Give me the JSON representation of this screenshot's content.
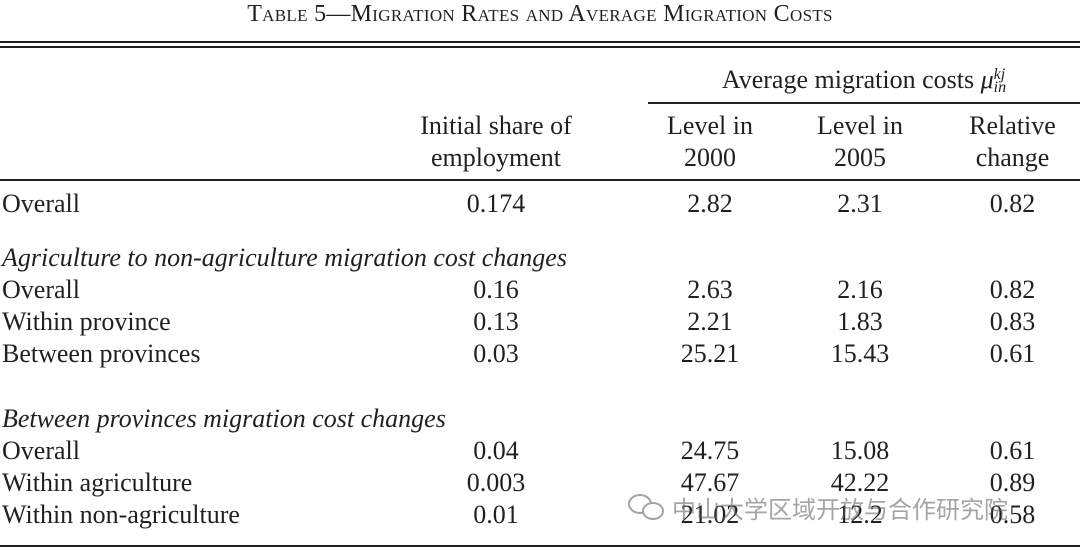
{
  "table": {
    "title": "Table 5—Migration Rates and Average Migration Costs",
    "span_header": {
      "text": "Average migration costs ",
      "symbol": "μ",
      "superscript": "kj",
      "subscript": "in"
    },
    "columns": {
      "col1_line1": "Initial share of",
      "col1_line2": "employment",
      "col2_line1": "Level in",
      "col2_line2": "2000",
      "col3_line1": "Level in",
      "col3_line2": "2005",
      "col4_line1": "Relative",
      "col4_line2": "change"
    },
    "overall_row": {
      "label": "Overall",
      "share": "0.174",
      "level2000": "2.82",
      "level2005": "2.31",
      "change": "0.82"
    },
    "sections": [
      {
        "heading": "Agriculture to non-agriculture migration cost changes",
        "rows": [
          {
            "label": "Overall",
            "share": "0.16",
            "level2000": "2.63",
            "level2005": "2.16",
            "change": "0.82"
          },
          {
            "label": "Within province",
            "share": "0.13",
            "level2000": "2.21",
            "level2005": "1.83",
            "change": "0.83"
          },
          {
            "label": "Between provinces",
            "share": "0.03",
            "level2000": "25.21",
            "level2005": "15.43",
            "change": "0.61"
          }
        ]
      },
      {
        "heading": "Between provinces migration cost changes",
        "rows": [
          {
            "label": "Overall",
            "share": "0.04",
            "level2000": "24.75",
            "level2005": "15.08",
            "change": "0.61"
          },
          {
            "label": "Within agriculture",
            "share": "0.003",
            "level2000": "47.67",
            "level2005": "42.22",
            "change": "0.89"
          },
          {
            "label": "Within non-agriculture",
            "share": "0.01",
            "level2000": "21.02",
            "level2005": "12.2",
            "change": "0.58"
          }
        ]
      }
    ]
  },
  "watermark": {
    "text": "中山大学区域开放与合作研究院",
    "icon": "wechat-icon"
  },
  "colors": {
    "text": "#231f20",
    "rule": "#231f20",
    "watermark": "#8a8a8a"
  }
}
